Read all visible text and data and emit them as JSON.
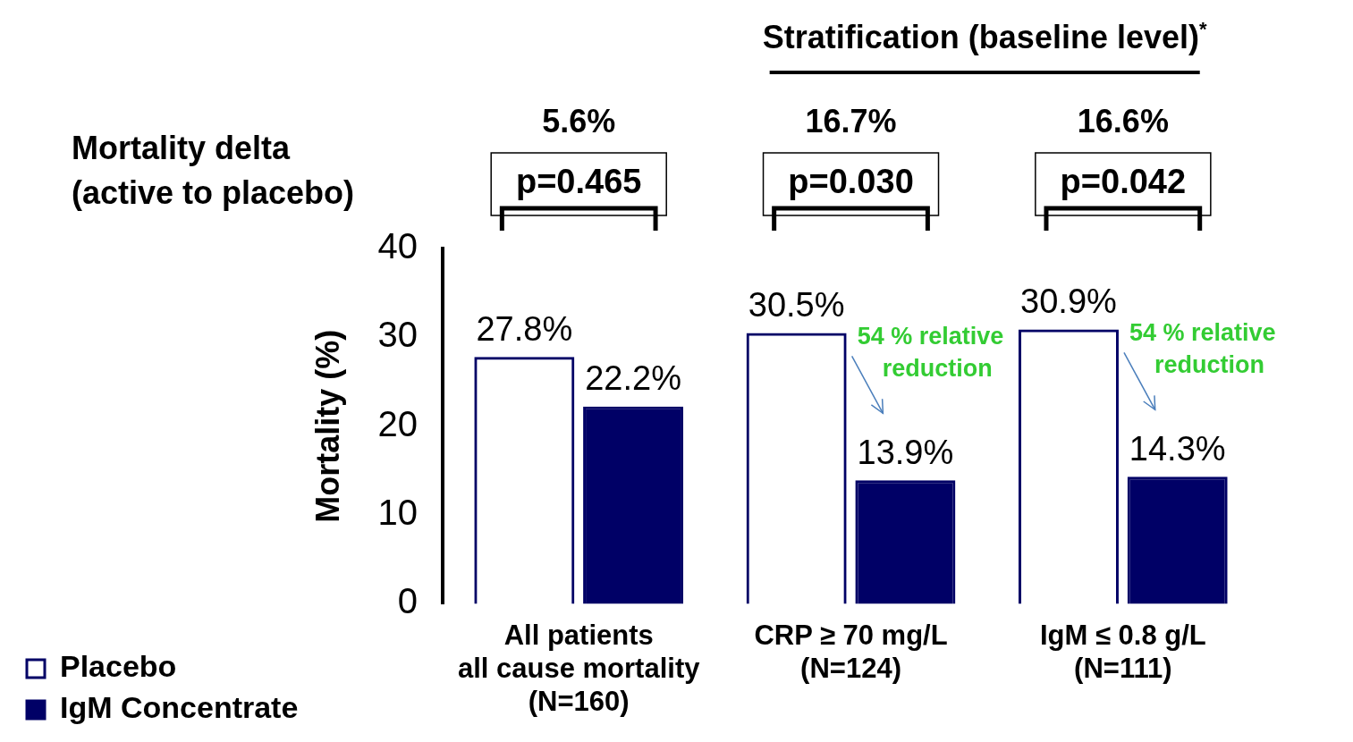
{
  "chart_data": {
    "type": "bar",
    "title": "Stratification (baseline level)$^{*}$",
    "ylabel": "Mortality (%)",
    "categories": [
      "All patients\nall cause mortality\n(N=160)",
      "CRP ≥ 70 mg/L\n(N=124)",
      "IgM ≤ 0.8 g/L\n(N=111)"
    ],
    "series": [
      {
        "name": "Placebo",
        "color": "#000066",
        "values": [
          27.8,
          30.5,
          30.9
        ],
        "value_labels": [
          "27.8%",
          "30.5%",
          "30.9%"
        ]
      },
      {
        "name": "IgM Concentrate",
        "color": "#000066",
        "values": [
          22.2,
          13.9,
          14.3
        ],
        "value_labels": [
          "22.2%",
          "13.9%",
          "14.3%"
        ]
      }
    ],
    "ylim": [
      0,
      40
    ],
    "yticks": [
      0,
      10,
      20,
      30,
      40
    ],
    "grid": false,
    "legend": "bottom left",
    "annotations": [
      "Mortality delta\n(active to placebo)",
      "5.6%",
      "16.7%",
      "16.6%",
      "p=0.465",
      "p=0.030",
      "p=0.042",
      "54 % relative\nreduction",
      "54 % relative\nreduction"
    ]
  }
}
